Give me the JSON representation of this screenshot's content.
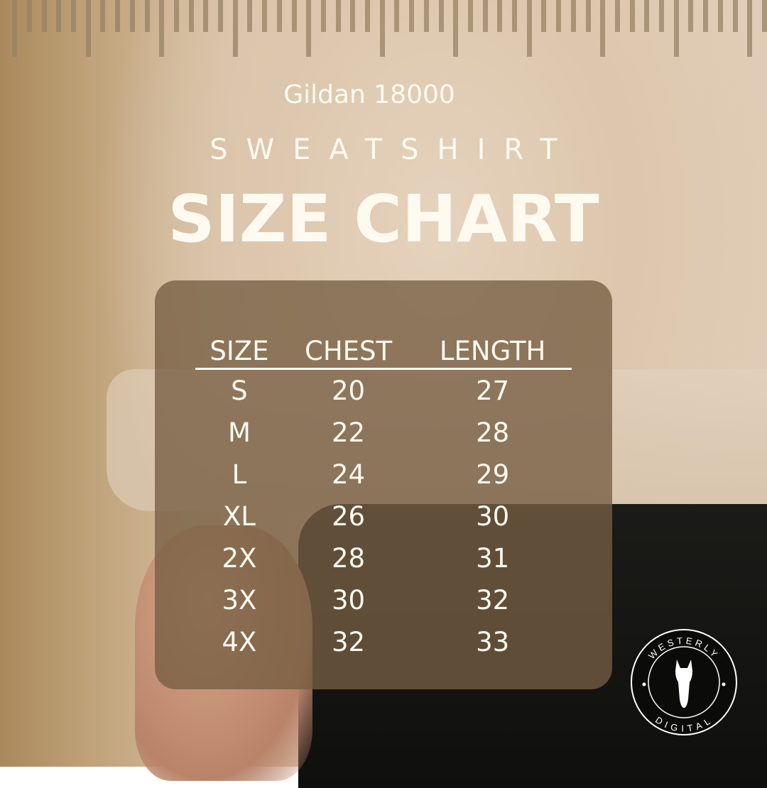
{
  "brand": "Gildan 18000",
  "subtitle": "SWEATSHIRT",
  "title": "SIZE CHART",
  "table": {
    "headers": [
      "SIZE",
      "CHEST",
      "LENGTH"
    ],
    "rows": [
      [
        "S",
        "20",
        "27"
      ],
      [
        "M",
        "22",
        "28"
      ],
      [
        "L",
        "24",
        "29"
      ],
      [
        "XL",
        "26",
        "30"
      ],
      [
        "2X",
        "28",
        "31"
      ],
      [
        "3X",
        "30",
        "32"
      ],
      [
        "4X",
        "32",
        "33"
      ]
    ]
  },
  "logo": {
    "top_text": "WESTERLY",
    "bottom_text": "DIGITAL",
    "icon": "horse-head-icon"
  },
  "colors": {
    "text": "#fffaf0",
    "panel": "#765e42",
    "ruler": "#968264"
  }
}
